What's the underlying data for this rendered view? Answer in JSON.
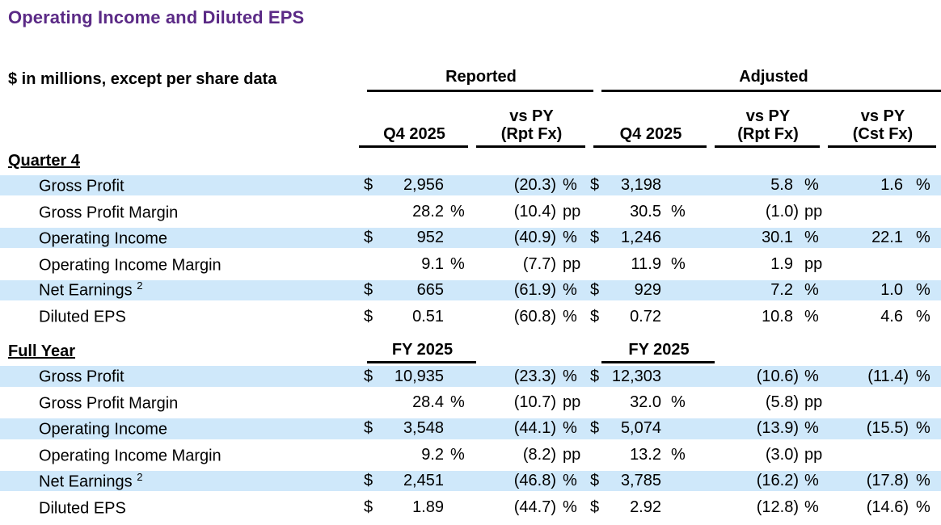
{
  "title": "Operating Income and Diluted EPS",
  "subtitle": "$ in millions, except per share data",
  "colors": {
    "accent_purple": "#5b2a86",
    "row_highlight_blue": "#cfe8fa",
    "rule_black": "#000000"
  },
  "header": {
    "groups": [
      {
        "label": "Reported"
      },
      {
        "label": "Adjusted"
      }
    ],
    "subcolumns": [
      {
        "line1": "",
        "line2": "Q4 2025"
      },
      {
        "line1": "vs PY",
        "line2": "(Rpt Fx)"
      },
      {
        "line1": "",
        "line2": "Q4 2025"
      },
      {
        "line1": "vs PY",
        "line2": "(Rpt Fx)"
      },
      {
        "line1": "vs PY",
        "line2": "(Cst Fx)"
      }
    ]
  },
  "sections": [
    {
      "label": "Quarter 4",
      "period_rpt": "",
      "period_adj": "",
      "rows": [
        {
          "label": "Gross Profit",
          "sup": "",
          "c1cur": "$",
          "c1": "2,956",
          "c1u": "",
          "c2": "(20.3)",
          "c2u": "%",
          "c3cur": "$",
          "c3": "3,198",
          "c3u": "",
          "c4": "5.8",
          "c4u": "%",
          "c5": "1.6",
          "c5u": "%"
        },
        {
          "label": "Gross Profit Margin",
          "sup": "",
          "c1cur": "",
          "c1": "28.2",
          "c1u": "%",
          "c2": "(10.4)",
          "c2u": "pp",
          "c3cur": "",
          "c3": "30.5",
          "c3u": "%",
          "c4": "(1.0)",
          "c4u": "pp",
          "c5": "",
          "c5u": ""
        },
        {
          "label": "Operating Income",
          "sup": "",
          "c1cur": "$",
          "c1": "952",
          "c1u": "",
          "c2": "(40.9)",
          "c2u": "%",
          "c3cur": "$",
          "c3": "1,246",
          "c3u": "",
          "c4": "30.1",
          "c4u": "%",
          "c5": "22.1",
          "c5u": "%"
        },
        {
          "label": "Operating Income Margin",
          "sup": "",
          "c1cur": "",
          "c1": "9.1",
          "c1u": "%",
          "c2": "(7.7)",
          "c2u": "pp",
          "c3cur": "",
          "c3": "11.9",
          "c3u": "%",
          "c4": "1.9",
          "c4u": "pp",
          "c5": "",
          "c5u": ""
        },
        {
          "label": "Net Earnings",
          "sup": "2",
          "c1cur": "$",
          "c1": "665",
          "c1u": "",
          "c2": "(61.9)",
          "c2u": "%",
          "c3cur": "$",
          "c3": "929",
          "c3u": "",
          "c4": "7.2",
          "c4u": "%",
          "c5": "1.0",
          "c5u": "%"
        },
        {
          "label": "Diluted EPS",
          "sup": "",
          "c1cur": "$",
          "c1": "0.51",
          "c1u": "",
          "c2": "(60.8)",
          "c2u": "%",
          "c3cur": "$",
          "c3": "0.72",
          "c3u": "",
          "c4": "10.8",
          "c4u": "%",
          "c5": "4.6",
          "c5u": "%"
        }
      ]
    },
    {
      "label": "Full Year",
      "period_rpt": "FY 2025",
      "period_adj": "FY 2025",
      "rows": [
        {
          "label": "Gross Profit",
          "sup": "",
          "c1cur": "$",
          "c1": "10,935",
          "c1u": "",
          "c2": "(23.3)",
          "c2u": "%",
          "c3cur": "$",
          "c3": "12,303",
          "c3u": "",
          "c4": "(10.6)",
          "c4u": "%",
          "c5": "(11.4)",
          "c5u": "%"
        },
        {
          "label": "Gross Profit Margin",
          "sup": "",
          "c1cur": "",
          "c1": "28.4",
          "c1u": "%",
          "c2": "(10.7)",
          "c2u": "pp",
          "c3cur": "",
          "c3": "32.0",
          "c3u": "%",
          "c4": "(5.8)",
          "c4u": "pp",
          "c5": "",
          "c5u": ""
        },
        {
          "label": "Operating Income",
          "sup": "",
          "c1cur": "$",
          "c1": "3,548",
          "c1u": "",
          "c2": "(44.1)",
          "c2u": "%",
          "c3cur": "$",
          "c3": "5,074",
          "c3u": "",
          "c4": "(13.9)",
          "c4u": "%",
          "c5": "(15.5)",
          "c5u": "%"
        },
        {
          "label": "Operating Income Margin",
          "sup": "",
          "c1cur": "",
          "c1": "9.2",
          "c1u": "%",
          "c2": "(8.2)",
          "c2u": "pp",
          "c3cur": "",
          "c3": "13.2",
          "c3u": "%",
          "c4": "(3.0)",
          "c4u": "pp",
          "c5": "",
          "c5u": ""
        },
        {
          "label": "Net Earnings",
          "sup": "2",
          "c1cur": "$",
          "c1": "2,451",
          "c1u": "",
          "c2": "(46.8)",
          "c2u": "%",
          "c3cur": "$",
          "c3": "3,785",
          "c3u": "",
          "c4": "(16.2)",
          "c4u": "%",
          "c5": "(17.8)",
          "c5u": "%"
        },
        {
          "label": "Diluted EPS",
          "sup": "",
          "c1cur": "$",
          "c1": "1.89",
          "c1u": "",
          "c2": "(44.7)",
          "c2u": "%",
          "c3cur": "$",
          "c3": "2.92",
          "c3u": "",
          "c4": "(12.8)",
          "c4u": "%",
          "c5": "(14.6)",
          "c5u": "%"
        }
      ]
    }
  ]
}
